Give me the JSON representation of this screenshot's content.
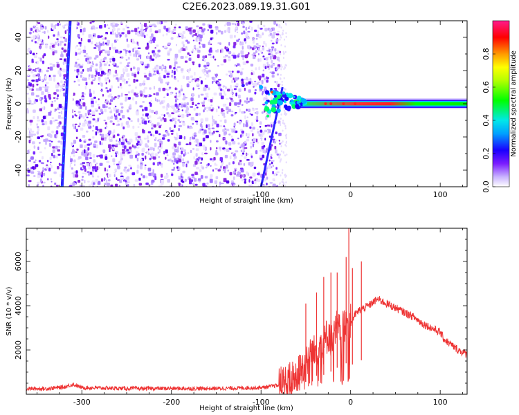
{
  "title": "C2E6.2023.089.19.31.G01",
  "chart_data": [
    {
      "type": "heatmap",
      "xlabel": "Height of straight line (km)",
      "ylabel": "Frequency (Hz)",
      "xlim": [
        -362,
        130
      ],
      "ylim": [
        -50,
        50
      ],
      "xticks": [
        -300,
        -200,
        -100,
        0,
        100
      ],
      "yticks": [
        -40,
        -20,
        0,
        20,
        40
      ],
      "colorbar": {
        "label": "Normalized spectral amplitude",
        "range": [
          0,
          1
        ],
        "ticks": [
          0.0,
          0.2,
          0.4,
          0.6,
          0.8
        ],
        "colors": [
          "#ffffff",
          "#d9c8ff",
          "#8a2be2",
          "#0000ff",
          "#00e5ff",
          "#00ff00",
          "#ffff00",
          "#ff8c00",
          "#ff0000",
          "#ff1493"
        ]
      },
      "features": {
        "noise_region_x": [
          -362,
          -80
        ],
        "diagonal_streak_1": {
          "x": [
            -322,
            -313
          ],
          "y": [
            -50,
            50
          ]
        },
        "diagonal_streak_2": {
          "x": [
            -100,
            -76
          ],
          "y": [
            -50,
            10
          ]
        },
        "signal_line": {
          "x_start": -95,
          "x_end": 130,
          "y": 0
        }
      }
    },
    {
      "type": "line",
      "xlabel": "Height of straight line (km)",
      "ylabel": "SNR (10 * v/v)",
      "xlim": [
        -362,
        130
      ],
      "ylim": [
        0,
        7500
      ],
      "xticks": [
        -300,
        -200,
        -100,
        0,
        100
      ],
      "yticks": [
        2000,
        4000,
        6000
      ],
      "color": "#ee3333",
      "series": [
        {
          "x": [
            -362,
            -340,
            -320,
            -310,
            -300,
            -250,
            -200,
            -150,
            -100,
            -80,
            -70,
            -60,
            -50,
            -45,
            -40,
            -35,
            -30,
            -25,
            -20,
            -15,
            -10,
            -5,
            -2,
            0,
            5,
            10,
            15,
            20,
            30,
            40,
            50,
            60,
            70,
            80,
            90,
            100,
            104,
            110,
            120,
            130
          ],
          "y": [
            250,
            250,
            320,
            450,
            300,
            260,
            260,
            260,
            300,
            400,
            550,
            800,
            1400,
            2000,
            1800,
            2500,
            2200,
            2800,
            2400,
            3000,
            2600,
            3500,
            3300,
            3200,
            3600,
            3800,
            3900,
            4000,
            4300,
            4100,
            3900,
            3700,
            3500,
            3200,
            3000,
            2800,
            2500,
            2300,
            2000,
            1800
          ]
        }
      ],
      "spikes": [
        {
          "x": -50,
          "y": 4100
        },
        {
          "x": -38,
          "y": 4600
        },
        {
          "x": -30,
          "y": 5300
        },
        {
          "x": -22,
          "y": 5500
        },
        {
          "x": -15,
          "y": 5500
        },
        {
          "x": -5,
          "y": 6200
        },
        {
          "x": -2,
          "y": 7500
        },
        {
          "x": 2,
          "y": 5700
        },
        {
          "x": 12,
          "y": 6000
        }
      ]
    }
  ]
}
